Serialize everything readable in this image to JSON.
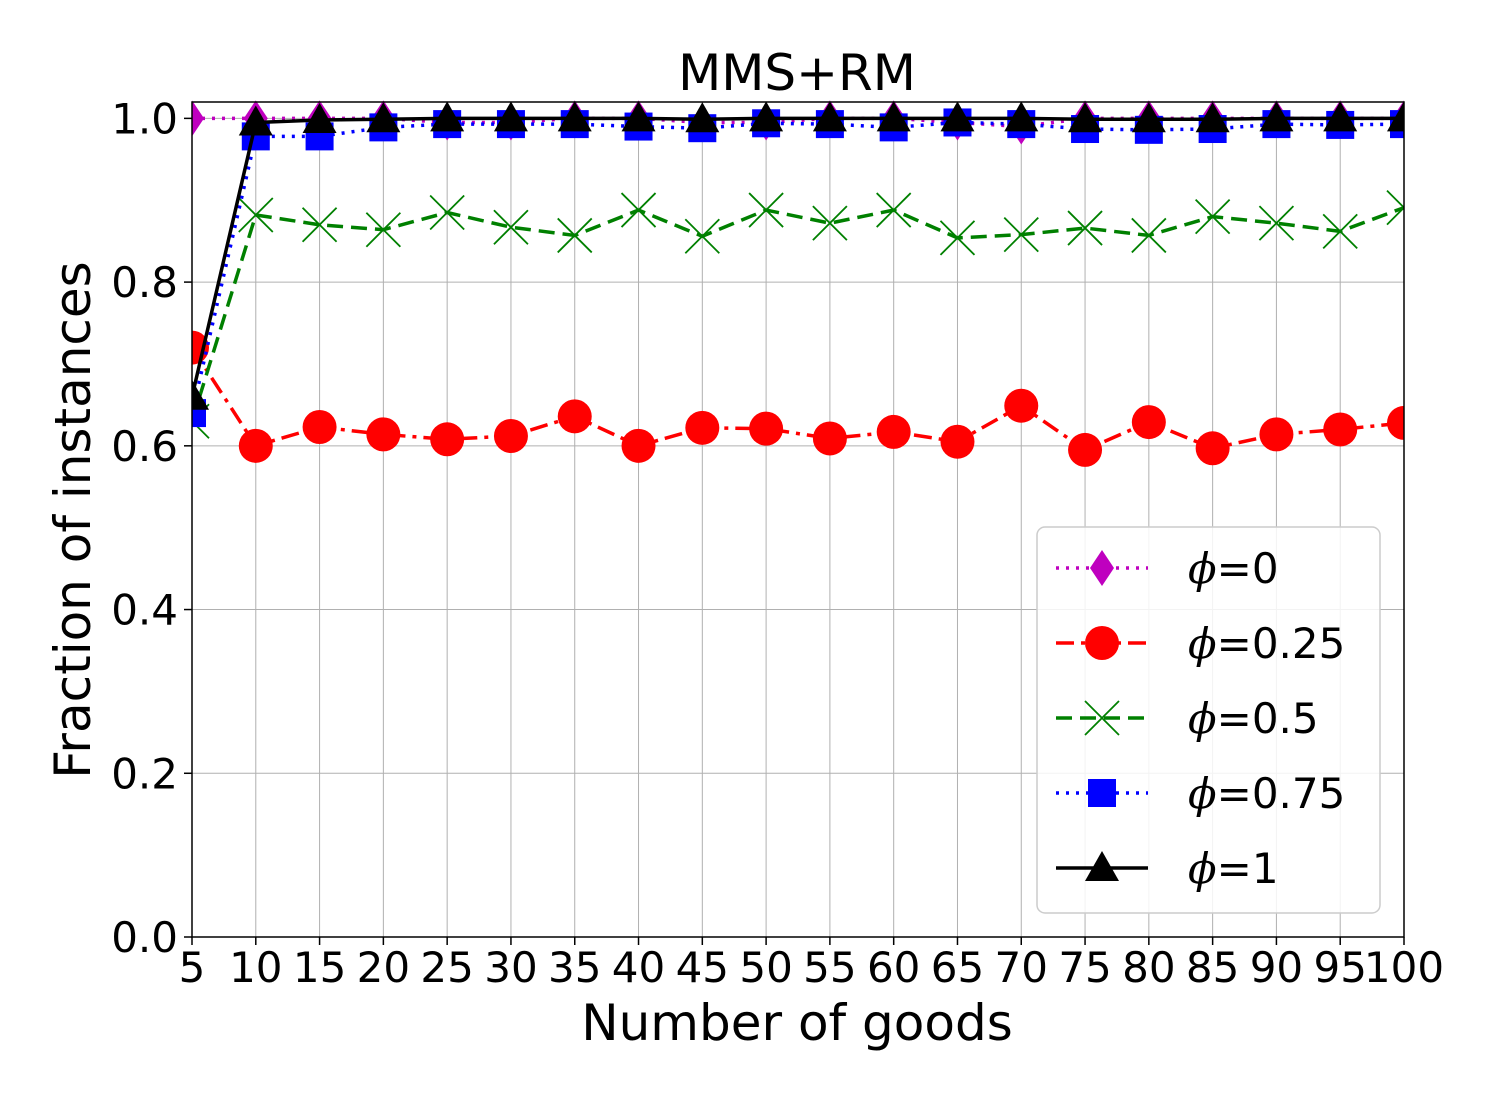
{
  "chart_data": {
    "type": "line",
    "title": "MMS+RM",
    "xlabel": "Number of goods",
    "ylabel": "Fraction of instances",
    "xlim": [
      5,
      100
    ],
    "ylim": [
      0,
      1.02
    ],
    "x": [
      5,
      10,
      15,
      20,
      25,
      30,
      35,
      40,
      45,
      50,
      55,
      60,
      65,
      70,
      75,
      80,
      85,
      90,
      95,
      100
    ],
    "xticks": [
      "5",
      "10",
      "15",
      "20",
      "25",
      "30",
      "35",
      "40",
      "45",
      "50",
      "55",
      "60",
      "65",
      "70",
      "75",
      "80",
      "85",
      "90",
      "95",
      "100"
    ],
    "yticks": [
      "0.0",
      "0.2",
      "0.4",
      "0.6",
      "0.8",
      "1.0"
    ],
    "grid": true,
    "legend_position": "lower-right",
    "series": [
      {
        "name": "ϕ=0",
        "legend_symbol": "ϕ",
        "legend_value": "=0",
        "color": "#bf00bf",
        "dash": "dotted",
        "marker": "diamond",
        "values": [
          1.0,
          1.0,
          1.0,
          1.0,
          0.995,
          0.995,
          1.0,
          1.0,
          0.995,
          0.995,
          1.0,
          1.0,
          0.995,
          0.99,
          1.0,
          1.0,
          1.0,
          1.0,
          1.0,
          1.0
        ]
      },
      {
        "name": "ϕ=0.25",
        "legend_symbol": "ϕ",
        "legend_value": "=0.25",
        "color": "#ff0000",
        "dash": "dashdot",
        "marker": "circle",
        "values": [
          0.72,
          0.6,
          0.623,
          0.614,
          0.608,
          0.612,
          0.636,
          0.6,
          0.622,
          0.621,
          0.609,
          0.617,
          0.605,
          0.649,
          0.595,
          0.629,
          0.597,
          0.614,
          0.62,
          0.628
        ]
      },
      {
        "name": "ϕ=0.5",
        "legend_symbol": "ϕ",
        "legend_value": "=0.5",
        "color": "#008000",
        "dash": "dashed",
        "marker": "x",
        "values": [
          0.63,
          0.882,
          0.87,
          0.864,
          0.885,
          0.867,
          0.857,
          0.888,
          0.856,
          0.888,
          0.872,
          0.888,
          0.854,
          0.858,
          0.866,
          0.857,
          0.88,
          0.872,
          0.862,
          0.891
        ]
      },
      {
        "name": "ϕ=0.75",
        "legend_symbol": "ϕ",
        "legend_value": "=0.75",
        "color": "#0000ff",
        "dash": "dotted",
        "marker": "square",
        "values": [
          0.64,
          0.978,
          0.978,
          0.989,
          0.993,
          0.993,
          0.993,
          0.99,
          0.988,
          0.994,
          0.993,
          0.989,
          0.995,
          0.993,
          0.987,
          0.986,
          0.987,
          0.993,
          0.992,
          0.993
        ]
      },
      {
        "name": "ϕ=1",
        "legend_symbol": "ϕ",
        "legend_value": "=1",
        "color": "#000000",
        "dash": "solid",
        "marker": "triangle",
        "values": [
          0.66,
          0.995,
          0.998,
          0.999,
          1.0,
          1.0,
          1.0,
          1.0,
          0.999,
          1.0,
          1.0,
          1.0,
          1.0,
          1.0,
          0.999,
          0.999,
          0.999,
          1.0,
          1.0,
          1.0
        ]
      }
    ]
  }
}
